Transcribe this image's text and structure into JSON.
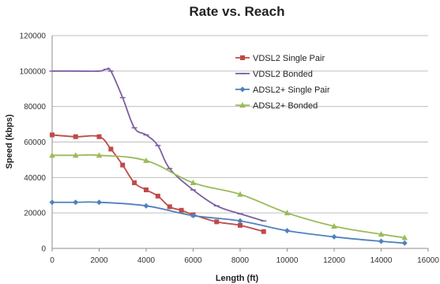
{
  "chart_data": {
    "type": "line",
    "title": "Rate vs. Reach",
    "xlabel": "Length (ft)",
    "ylabel": "Speed (kbps)",
    "xlim": [
      0,
      16000
    ],
    "ylim": [
      0,
      120000
    ],
    "xticks": [
      "0",
      "2000",
      "4000",
      "6000",
      "8000",
      "10000",
      "12000",
      "14000",
      "16000"
    ],
    "yticks": [
      "0",
      "20000",
      "40000",
      "60000",
      "80000",
      "100000",
      "120000"
    ],
    "grid": "horizontal",
    "legend_position": "top-right",
    "series": [
      {
        "name": "VDSL2 Single Pair",
        "color": "#be4b48",
        "marker": "square",
        "x": [
          0,
          1000,
          2000,
          2500,
          3000,
          3500,
          4000,
          4500,
          5000,
          5500,
          6000,
          7000,
          8000,
          9000
        ],
        "y": [
          64000,
          63000,
          63000,
          56000,
          47000,
          37000,
          33000,
          29500,
          23500,
          21500,
          19000,
          15000,
          13000,
          9500
        ]
      },
      {
        "name": "VDSL2 Bonded",
        "color": "#7d5fa0",
        "marker": "dash",
        "x": [
          0,
          1000,
          2000,
          2300,
          2500,
          3000,
          3500,
          4000,
          4500,
          5000,
          6000,
          7000,
          8000,
          9000
        ],
        "y": [
          100000,
          100000,
          100000,
          101000,
          100000,
          85000,
          68000,
          64000,
          58000,
          45000,
          33000,
          24000,
          19500,
          15500
        ]
      },
      {
        "name": "ADSL2+ Single Pair",
        "color": "#4f81bd",
        "marker": "diamond",
        "x": [
          0,
          1000,
          2000,
          4000,
          6000,
          8000,
          10000,
          12000,
          14000,
          15000
        ],
        "y": [
          26000,
          26000,
          26000,
          24000,
          18500,
          15500,
          10000,
          6500,
          4000,
          3000
        ]
      },
      {
        "name": "ADSL2+ Bonded",
        "color": "#9bbb59",
        "marker": "triangle",
        "x": [
          0,
          1000,
          2000,
          4000,
          6000,
          8000,
          10000,
          12000,
          14000,
          15000
        ],
        "y": [
          52500,
          52500,
          52500,
          49500,
          37000,
          30500,
          20000,
          12500,
          8000,
          6000
        ]
      }
    ]
  }
}
